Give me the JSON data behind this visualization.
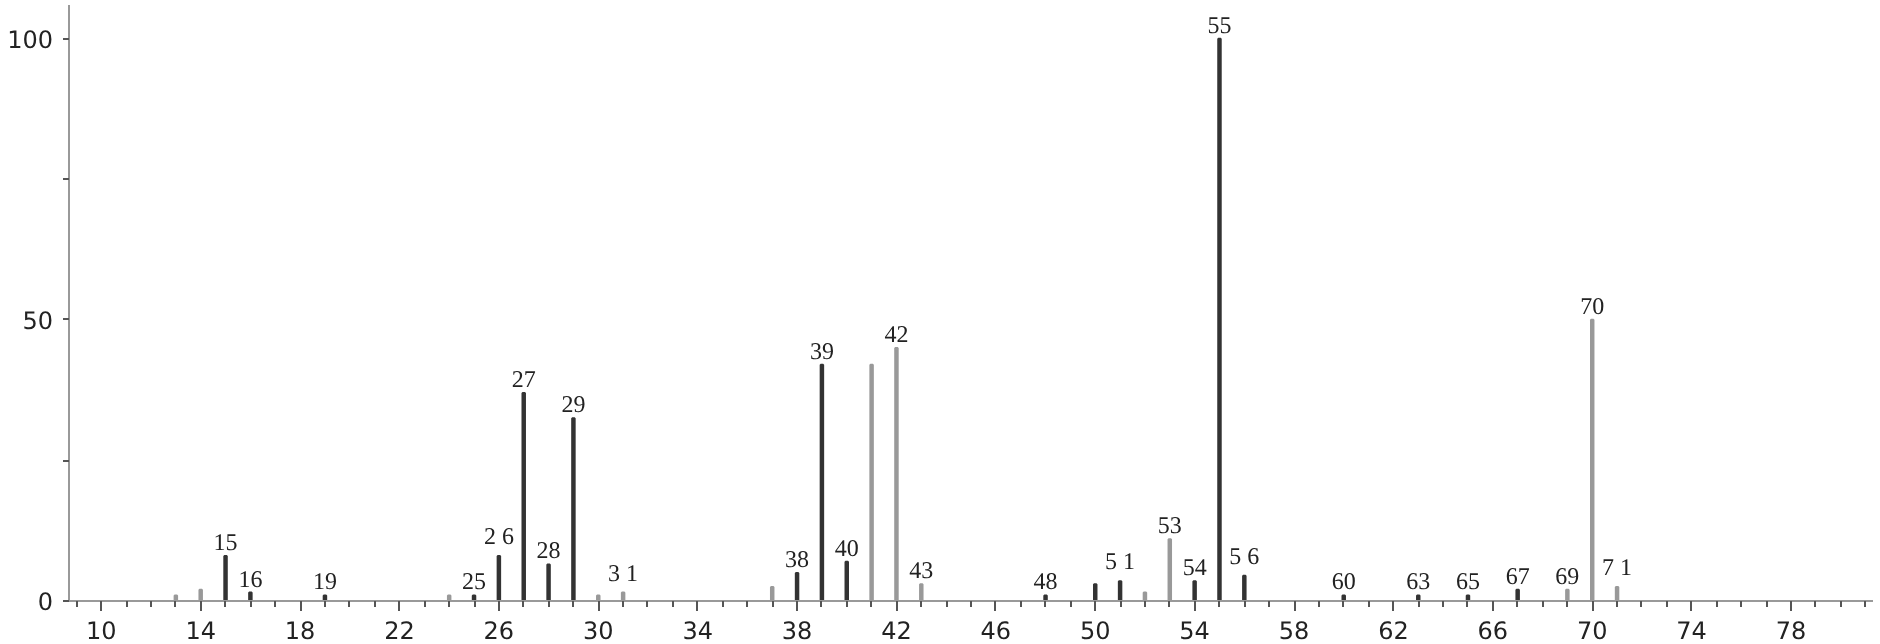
{
  "chart_data": {
    "type": "bar",
    "x": [
      13,
      14,
      15,
      16,
      19,
      24,
      25,
      26,
      27,
      28,
      29,
      30,
      31,
      37,
      38,
      39,
      40,
      41,
      42,
      43,
      48,
      50,
      51,
      52,
      53,
      54,
      55,
      56,
      60,
      63,
      65,
      67,
      69,
      70,
      71
    ],
    "values": [
      1,
      2,
      8,
      1.5,
      1,
      1,
      1,
      8,
      37,
      6.5,
      32.5,
      1,
      1.5,
      2.5,
      5,
      42,
      7,
      42,
      45,
      3,
      1,
      3,
      3.5,
      1.5,
      11,
      3.5,
      100,
      4.5,
      1,
      1,
      1,
      2,
      2,
      50,
      2.5
    ],
    "colors": [
      "#999999",
      "#999999",
      "#333333",
      "#333333",
      "#333333",
      "#999999",
      "#333333",
      "#333333",
      "#333333",
      "#333333",
      "#333333",
      "#999999",
      "#999999",
      "#999999",
      "#333333",
      "#333333",
      "#333333",
      "#999999",
      "#999999",
      "#999999",
      "#333333",
      "#333333",
      "#333333",
      "#999999",
      "#999999",
      "#333333",
      "#333333",
      "#333333",
      "#333333",
      "#333333",
      "#333333",
      "#333333",
      "#999999",
      "#999999",
      "#999999"
    ],
    "annotations": [
      {
        "text": "15",
        "x": 15,
        "y": 8
      },
      {
        "text": "16",
        "x": 16,
        "y": 1.5
      },
      {
        "text": "19",
        "x": 19,
        "y": 1
      },
      {
        "text": "25",
        "x": 25,
        "y": 1
      },
      {
        "text": "2 6",
        "x": 26,
        "y": 8
      },
      {
        "text": "27",
        "x": 27,
        "y": 37
      },
      {
        "text": "28",
        "x": 28,
        "y": 6.5
      },
      {
        "text": "29",
        "x": 29,
        "y": 32.5
      },
      {
        "text": "3 1",
        "x": 31,
        "y": 1.5
      },
      {
        "text": "38",
        "x": 38,
        "y": 5
      },
      {
        "text": "39",
        "x": 39,
        "y": 42
      },
      {
        "text": "40",
        "x": 40,
        "y": 7
      },
      {
        "text": "42",
        "x": 42,
        "y": 45
      },
      {
        "text": "43",
        "x": 43,
        "y": 3
      },
      {
        "text": "48",
        "x": 48,
        "y": 1
      },
      {
        "text": "5 1",
        "x": 51,
        "y": 3.5
      },
      {
        "text": "53",
        "x": 53,
        "y": 11
      },
      {
        "text": "54",
        "x": 54,
        "y": 3.5
      },
      {
        "text": "55",
        "x": 55,
        "y": 100
      },
      {
        "text": "5 6",
        "x": 56,
        "y": 4.5
      },
      {
        "text": "60",
        "x": 60,
        "y": 1
      },
      {
        "text": "63",
        "x": 63,
        "y": 1
      },
      {
        "text": "65",
        "x": 65,
        "y": 1
      },
      {
        "text": "67",
        "x": 67,
        "y": 2
      },
      {
        "text": "69",
        "x": 69,
        "y": 2
      },
      {
        "text": "70",
        "x": 70,
        "y": 50
      },
      {
        "text": "7 1",
        "x": 71,
        "y": 2.5
      }
    ],
    "xlim": [
      8.7,
      81.3
    ],
    "ylim": [
      0,
      106
    ],
    "xticks": [
      10,
      14,
      18,
      22,
      26,
      30,
      34,
      38,
      42,
      46,
      50,
      54,
      58,
      62,
      66,
      70,
      74,
      78
    ],
    "yticks": [
      0,
      {
        "value": 25,
        "label": null
      },
      50,
      {
        "value": 75,
        "label": null
      },
      100
    ],
    "grid": false
  }
}
